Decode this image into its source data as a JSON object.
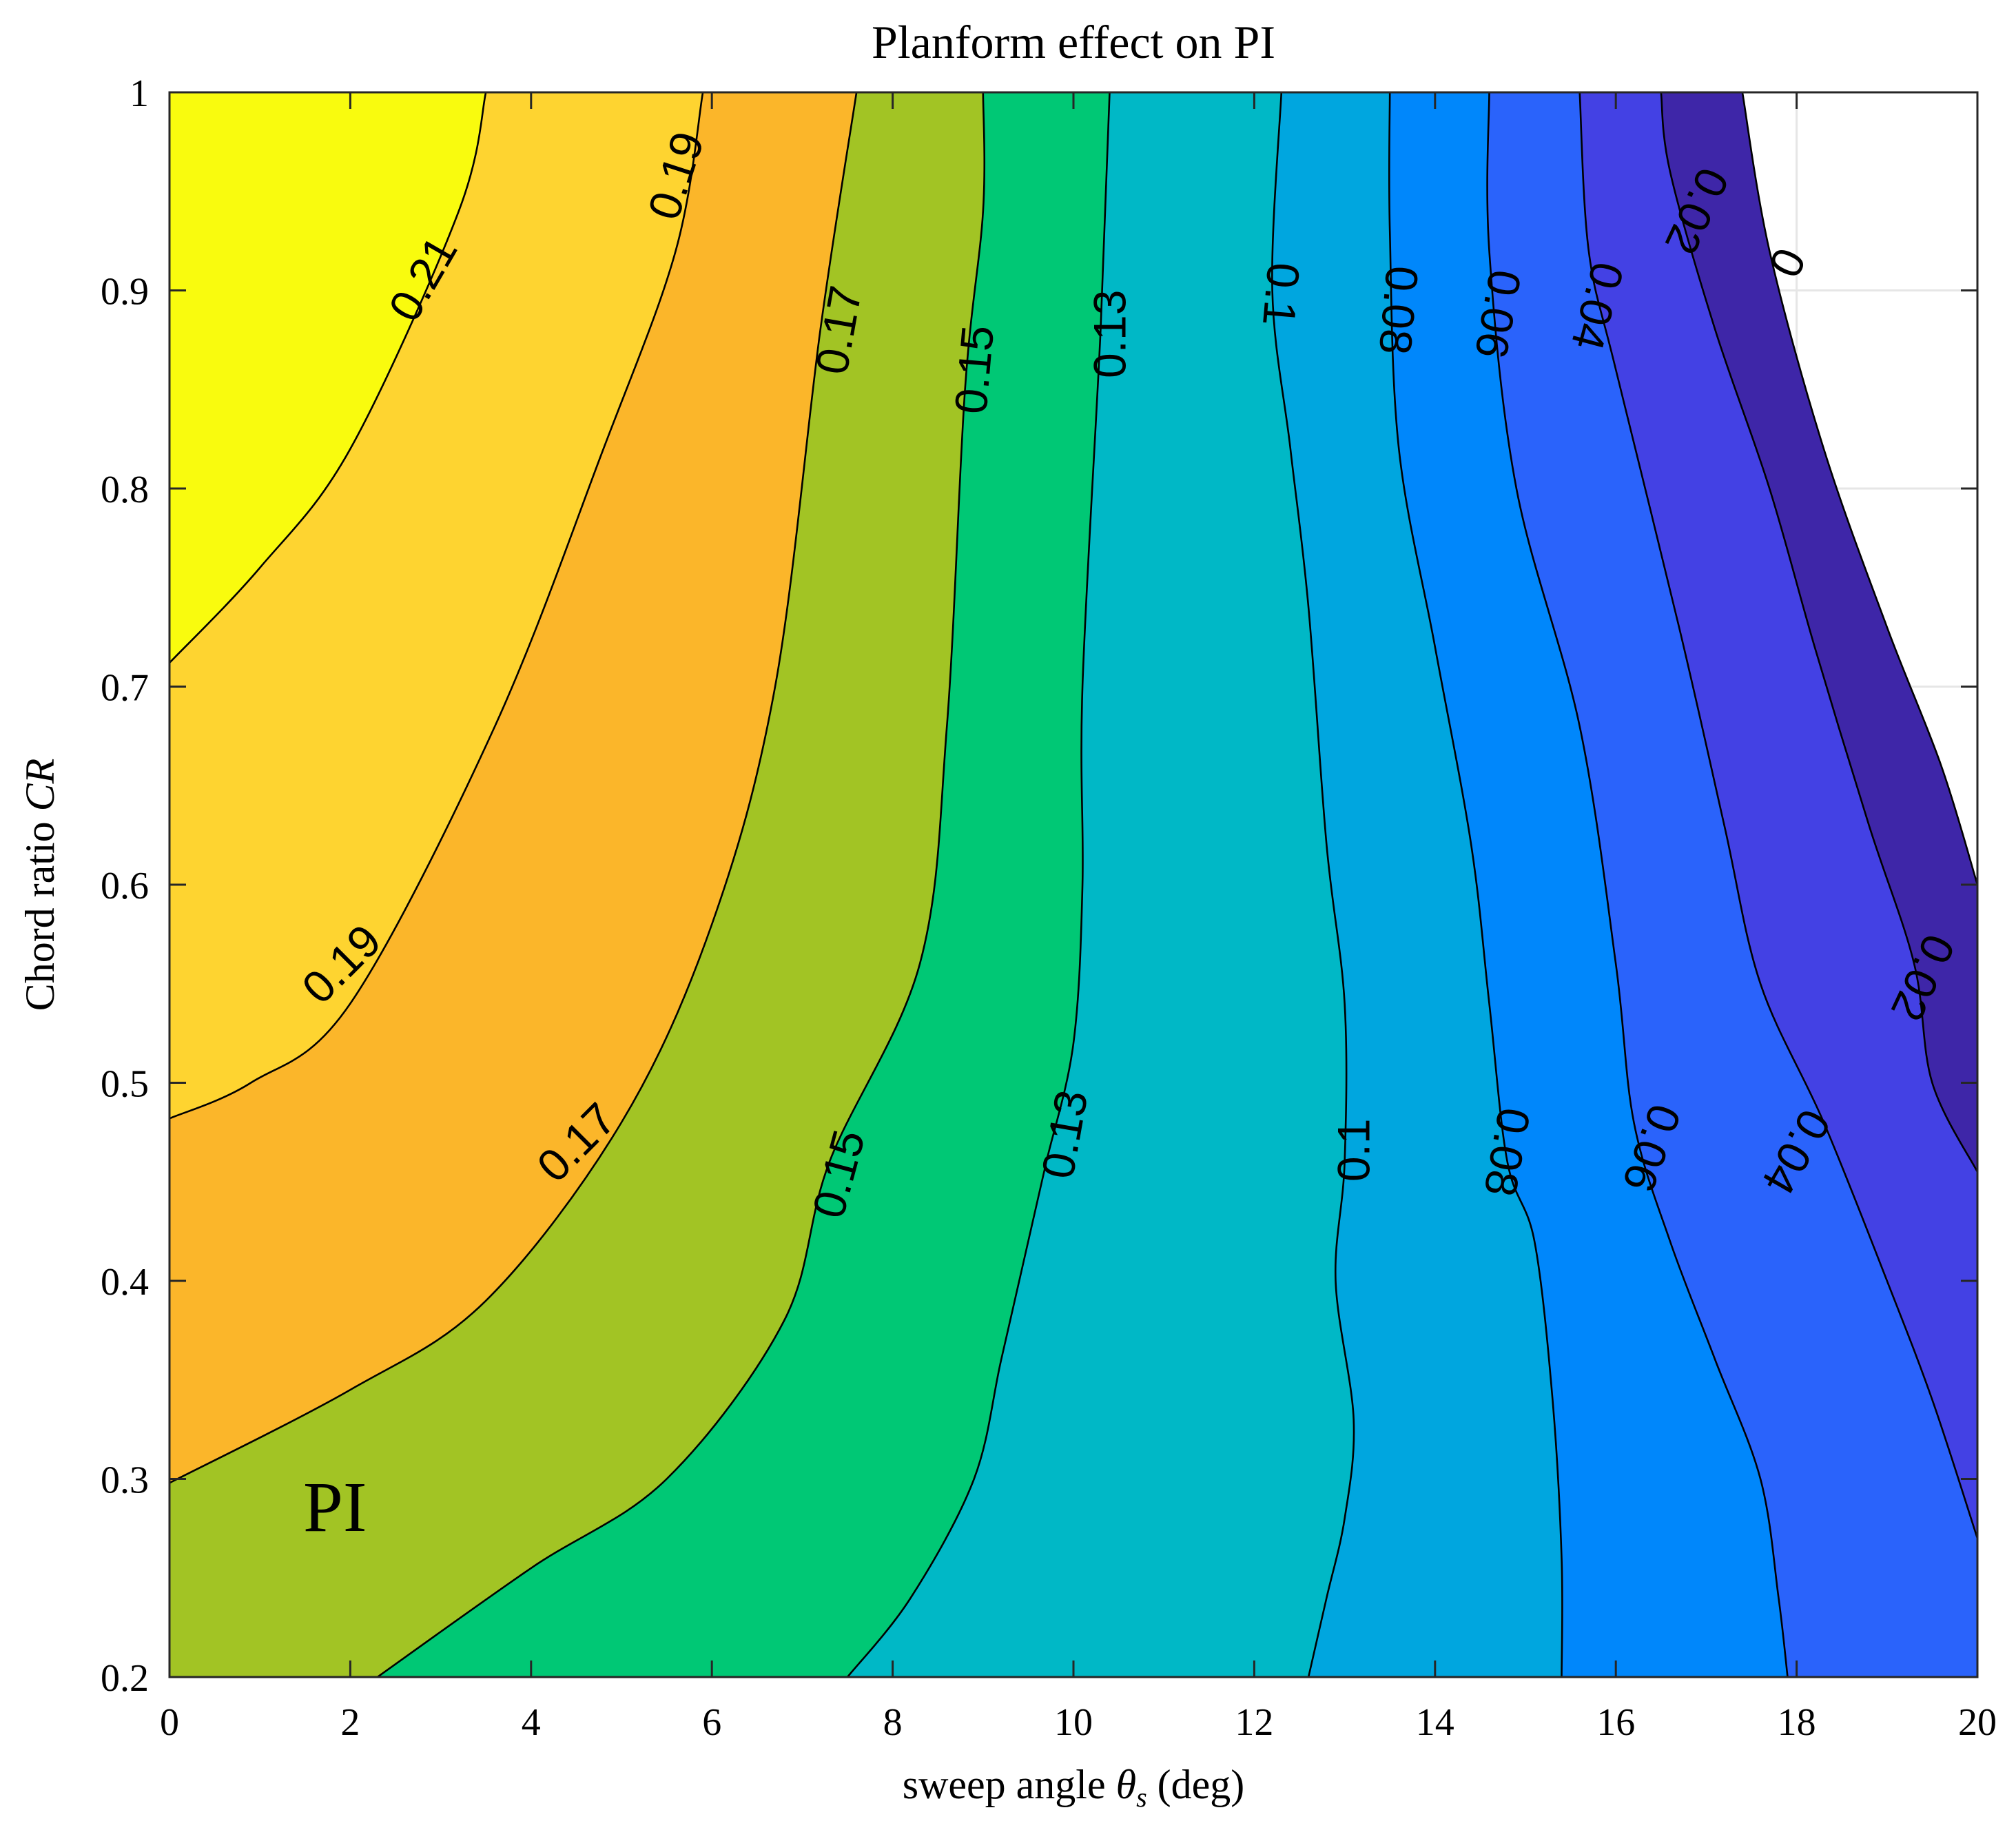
{
  "chart_data": {
    "type": "contour",
    "title": "Planform effect on PI",
    "xlabel": "sweep angle θs (deg)",
    "xlabel_parts": {
      "prefix": "sweep angle ",
      "symbol": "θ",
      "subscript": "s",
      "suffix": " (deg)"
    },
    "ylabel": "Chord ratio CR",
    "ylabel_parts": {
      "prefix": "Chord ratio ",
      "symbol": "CR"
    },
    "xlim": [
      0,
      20
    ],
    "ylim": [
      0.2,
      1
    ],
    "xticks": [
      0,
      2,
      4,
      6,
      8,
      10,
      12,
      14,
      16,
      18,
      20
    ],
    "yticks": [
      0.2,
      0.3,
      0.4,
      0.5,
      0.6,
      0.7,
      0.8,
      0.9,
      1
    ],
    "xtick_labels": [
      "0",
      "2",
      "4",
      "6",
      "8",
      "10",
      "12",
      "14",
      "16",
      "18",
      "20"
    ],
    "ytick_labels": [
      "0.2",
      "0.3",
      "0.4",
      "0.5",
      "0.6",
      "0.7",
      "0.8",
      "0.9",
      "1"
    ],
    "grid": true,
    "annotation": "PI",
    "colors": {
      "over_0.21": "#f9fb0e",
      "0.19_0.21": "#fed430",
      "0.17_0.19": "#fbb62a",
      "0.15_0.17": "#a2c424",
      "0.13_0.15": "#00c875",
      "0.10_0.13": "#00b8c6",
      "0.08_0.10": "#00a6df",
      "0.06_0.08": "#0087fb",
      "0.04_0.06": "#2a63fb",
      "0.02_0.04": "#4341e4",
      "0_0.02": "#3e26a8",
      "below_0": "#ffffff",
      "line": "#000000"
    },
    "contours": [
      {
        "level": 0.21,
        "points": [
          [
            3.5,
            1.0
          ],
          [
            3.2,
            0.94
          ],
          [
            2.0,
            0.82
          ],
          [
            1.0,
            0.76
          ],
          [
            0.0,
            0.712
          ]
        ]
      },
      {
        "level": 0.19,
        "points": [
          [
            5.9,
            1.0
          ],
          [
            5.6,
            0.92
          ],
          [
            4.8,
            0.82
          ],
          [
            3.6,
            0.68
          ],
          [
            2.0,
            0.54
          ],
          [
            0.9,
            0.5
          ],
          [
            0.0,
            0.482
          ]
        ]
      },
      {
        "level": 0.17,
        "points": [
          [
            7.6,
            1.0
          ],
          [
            7.2,
            0.88
          ],
          [
            6.7,
            0.7
          ],
          [
            6.0,
            0.58
          ],
          [
            5.0,
            0.48
          ],
          [
            3.5,
            0.39
          ],
          [
            2.0,
            0.345
          ],
          [
            0.0,
            0.298
          ]
        ]
      },
      {
        "level": 0.15,
        "points": [
          [
            9.0,
            1.0
          ],
          [
            9.0,
            0.94
          ],
          [
            8.8,
            0.85
          ],
          [
            8.6,
            0.68
          ],
          [
            8.3,
            0.56
          ],
          [
            7.3,
            0.46
          ],
          [
            6.8,
            0.38
          ],
          [
            5.5,
            0.3
          ],
          [
            4.0,
            0.255
          ],
          [
            2.3,
            0.2
          ]
        ]
      },
      {
        "level": 0.13,
        "points": [
          [
            10.4,
            1.0
          ],
          [
            10.3,
            0.88
          ],
          [
            10.1,
            0.7
          ],
          [
            10.1,
            0.6
          ],
          [
            10.0,
            0.52
          ],
          [
            9.7,
            0.46
          ],
          [
            9.5,
            0.42
          ],
          [
            9.2,
            0.36
          ],
          [
            8.9,
            0.3
          ],
          [
            8.2,
            0.24
          ],
          [
            7.5,
            0.2
          ]
        ]
      },
      {
        "level": 0.1,
        "points": [
          [
            12.3,
            1.0
          ],
          [
            12.2,
            0.9
          ],
          [
            12.4,
            0.82
          ],
          [
            12.6,
            0.74
          ],
          [
            12.8,
            0.62
          ],
          [
            13.0,
            0.54
          ],
          [
            13.0,
            0.46
          ],
          [
            12.9,
            0.4
          ],
          [
            13.1,
            0.33
          ],
          [
            13.0,
            0.28
          ],
          [
            12.8,
            0.24
          ],
          [
            12.6,
            0.2
          ]
        ]
      },
      {
        "level": 0.08,
        "points": [
          [
            13.5,
            1.0
          ],
          [
            13.5,
            0.93
          ],
          [
            13.6,
            0.82
          ],
          [
            14.0,
            0.72
          ],
          [
            14.4,
            0.62
          ],
          [
            14.6,
            0.54
          ],
          [
            14.8,
            0.46
          ],
          [
            15.1,
            0.42
          ],
          [
            15.3,
            0.34
          ],
          [
            15.4,
            0.26
          ],
          [
            15.4,
            0.2
          ]
        ]
      },
      {
        "level": 0.06,
        "points": [
          [
            14.6,
            1.0
          ],
          [
            14.6,
            0.92
          ],
          [
            14.9,
            0.8
          ],
          [
            15.6,
            0.68
          ],
          [
            16.0,
            0.56
          ],
          [
            16.2,
            0.48
          ],
          [
            16.6,
            0.42
          ],
          [
            17.1,
            0.36
          ],
          [
            17.6,
            0.3
          ],
          [
            17.8,
            0.24
          ],
          [
            17.9,
            0.2
          ]
        ]
      },
      {
        "level": 0.04,
        "points": [
          [
            15.6,
            1.0
          ],
          [
            15.7,
            0.92
          ],
          [
            16.0,
            0.86
          ],
          [
            16.7,
            0.73
          ],
          [
            17.2,
            0.63
          ],
          [
            17.6,
            0.55
          ],
          [
            18.3,
            0.48
          ],
          [
            19.0,
            0.4
          ],
          [
            19.5,
            0.34
          ],
          [
            20.0,
            0.27
          ]
        ]
      },
      {
        "level": 0.02,
        "points": [
          [
            16.5,
            1.0
          ],
          [
            16.6,
            0.96
          ],
          [
            17.1,
            0.88
          ],
          [
            17.7,
            0.8
          ],
          [
            18.2,
            0.72
          ],
          [
            18.8,
            0.63
          ],
          [
            19.3,
            0.56
          ],
          [
            19.5,
            0.5
          ],
          [
            20.0,
            0.455
          ]
        ]
      },
      {
        "level": 0.0,
        "points": [
          [
            17.4,
            1.0
          ],
          [
            17.7,
            0.92
          ],
          [
            18.3,
            0.82
          ],
          [
            19.0,
            0.73
          ],
          [
            19.6,
            0.66
          ],
          [
            20.0,
            0.6
          ]
        ]
      }
    ],
    "contour_labels": [
      {
        "text": "0.21",
        "x": 2.8,
        "y": 0.906,
        "angle": -60
      },
      {
        "text": "0.19",
        "x": 5.6,
        "y": 0.958,
        "angle": -72
      },
      {
        "text": "0.17",
        "x": 7.4,
        "y": 0.88,
        "angle": -80
      },
      {
        "text": "0.15",
        "x": 8.9,
        "y": 0.86,
        "angle": -85
      },
      {
        "text": "0.13",
        "x": 10.4,
        "y": 0.878,
        "angle": -90
      },
      {
        "text": "0.1",
        "x": 12.3,
        "y": 0.898,
        "angle": 95
      },
      {
        "text": "0.08",
        "x": 13.6,
        "y": 0.89,
        "angle": 95
      },
      {
        "text": "0.06",
        "x": 14.7,
        "y": 0.888,
        "angle": 100
      },
      {
        "text": "0.04",
        "x": 15.8,
        "y": 0.892,
        "angle": 105
      },
      {
        "text": "0.02",
        "x": 16.9,
        "y": 0.94,
        "angle": 115
      },
      {
        "text": "0",
        "x": 17.9,
        "y": 0.914,
        "angle": 115
      },
      {
        "text": "0.19",
        "x": 1.9,
        "y": 0.56,
        "angle": -45
      },
      {
        "text": "0.17",
        "x": 4.5,
        "y": 0.47,
        "angle": -45
      },
      {
        "text": "0.15",
        "x": 7.4,
        "y": 0.454,
        "angle": -75
      },
      {
        "text": "0.13",
        "x": 9.9,
        "y": 0.474,
        "angle": -80
      },
      {
        "text": "0.1",
        "x": 13.1,
        "y": 0.466,
        "angle": -90
      },
      {
        "text": "0.08",
        "x": 14.8,
        "y": 0.465,
        "angle": 100
      },
      {
        "text": "0.06",
        "x": 16.4,
        "y": 0.467,
        "angle": 110
      },
      {
        "text": "0.04",
        "x": 18.0,
        "y": 0.465,
        "angle": 120
      },
      {
        "text": "0.02",
        "x": 19.4,
        "y": 0.553,
        "angle": 115
      }
    ]
  }
}
